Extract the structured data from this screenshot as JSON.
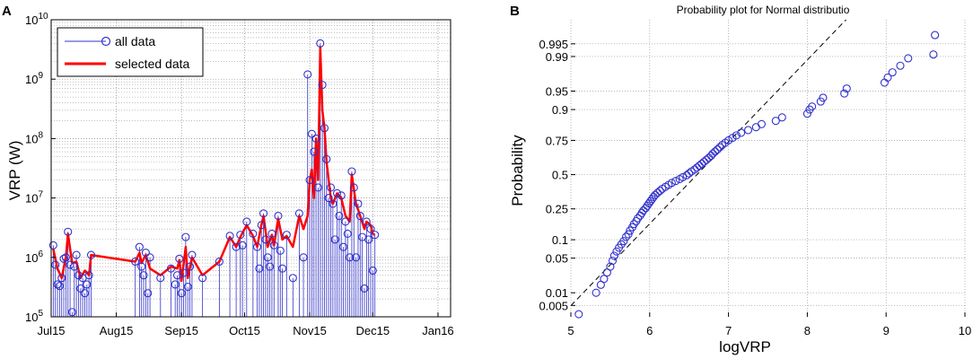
{
  "chart_data": [
    {
      "panel": "A",
      "type": "line",
      "ylabel": "VRP (W)",
      "xlabel": "",
      "yscale": "log",
      "ylim": [
        100000,
        10000000000
      ],
      "xlim_days": [
        0,
        190
      ],
      "y_ticks": [
        {
          "value": 100000,
          "base": "10",
          "exp": "5"
        },
        {
          "value": 1000000,
          "base": "10",
          "exp": "6"
        },
        {
          "value": 10000000,
          "base": "10",
          "exp": "7"
        },
        {
          "value": 100000000,
          "base": "10",
          "exp": "8"
        },
        {
          "value": 1000000000,
          "base": "10",
          "exp": "9"
        },
        {
          "value": 10000000000,
          "base": "10",
          "exp": "10"
        }
      ],
      "x_ticks": [
        {
          "label": "Jul15",
          "day": 0
        },
        {
          "label": "Aug15",
          "day": 31
        },
        {
          "label": "Sep15",
          "day": 62
        },
        {
          "label": "Oct15",
          "day": 92
        },
        {
          "label": "Nov15",
          "day": 123
        },
        {
          "label": "Dec15",
          "day": 153
        },
        {
          "label": "Jan16",
          "day": 184
        }
      ],
      "grid": true,
      "legend": {
        "position": "top-left",
        "entries": [
          "all data",
          "selected data"
        ]
      },
      "series": [
        {
          "name": "all data",
          "style": "stem-circle",
          "color": "#3333cc",
          "points": [
            [
              1,
              1600000.0
            ],
            [
              2,
              750000.0
            ],
            [
              3,
              350000.0
            ],
            [
              4,
              330000.0
            ],
            [
              5,
              450000.0
            ],
            [
              6,
              950000.0
            ],
            [
              7,
              1000000.0
            ],
            [
              8,
              2700000.0
            ],
            [
              9,
              750000.0
            ],
            [
              10,
              120000.0
            ],
            [
              11,
              700000.0
            ],
            [
              12,
              1100000.0
            ],
            [
              13,
              500000.0
            ],
            [
              14,
              300000.0
            ],
            [
              15,
              450000.0
            ],
            [
              16,
              250000.0
            ],
            [
              17,
              350000.0
            ],
            [
              18,
              500000.0
            ],
            [
              19,
              1100000.0
            ],
            [
              40,
              850000.0
            ],
            [
              42,
              1500000.0
            ],
            [
              43,
              700000.0
            ],
            [
              44,
              500000.0
            ],
            [
              45,
              1200000.0
            ],
            [
              46,
              250000.0
            ],
            [
              47,
              1000000.0
            ],
            [
              52,
              450000.0
            ],
            [
              57,
              650000.0
            ],
            [
              59,
              350000.0
            ],
            [
              60,
              500000.0
            ],
            [
              61,
              950000.0
            ],
            [
              62,
              250000.0
            ],
            [
              63,
              550000.0
            ],
            [
              64,
              2200000.0
            ],
            [
              65,
              320000.0
            ],
            [
              66,
              700000.0
            ],
            [
              67,
              1100000.0
            ],
            [
              72,
              450000.0
            ],
            [
              80,
              850000.0
            ],
            [
              85,
              2300000.0
            ],
            [
              88,
              1500000.0
            ],
            [
              90,
              2400000.0
            ],
            [
              91,
              1600000.0
            ],
            [
              93,
              4000000.0
            ],
            [
              96,
              2500000.0
            ],
            [
              98,
              1500000.0
            ],
            [
              99,
              650000.0
            ],
            [
              100,
              3500000.0
            ],
            [
              101,
              5500000.0
            ],
            [
              102,
              2000000.0
            ],
            [
              103,
              1000000.0
            ],
            [
              104,
              700000.0
            ],
            [
              105,
              2500000.0
            ],
            [
              106,
              1600000.0
            ],
            [
              108,
              5000000.0
            ],
            [
              109,
              1300000.0
            ],
            [
              110,
              650000.0
            ],
            [
              112,
              2400000.0
            ],
            [
              115,
              450000.0
            ],
            [
              118,
              5500000.0
            ],
            [
              120,
              1000000.0
            ],
            [
              122,
              1200000000.0
            ],
            [
              123,
              20000000.0
            ],
            [
              124,
              120000000.0
            ],
            [
              125,
              60000000.0
            ],
            [
              126,
              100000000.0
            ],
            [
              127,
              15000000.0
            ],
            [
              128,
              4000000000.0
            ],
            [
              129,
              800000000.0
            ],
            [
              130,
              150000000.0
            ],
            [
              131,
              45000000.0
            ],
            [
              132,
              10000000.0
            ],
            [
              133,
              15000000.0
            ],
            [
              134,
              8000000.0
            ],
            [
              135,
              2000000.0
            ],
            [
              136,
              12000000.0
            ],
            [
              137,
              5000000.0
            ],
            [
              138,
              11000000.0
            ],
            [
              139,
              1500000.0
            ],
            [
              140,
              4000000.0
            ],
            [
              141,
              2500000.0
            ],
            [
              142,
              1000000.0
            ],
            [
              143,
              28000000.0
            ],
            [
              144,
              15000000.0
            ],
            [
              145,
              1000000.0
            ],
            [
              146,
              8000000.0
            ],
            [
              147,
              5000000.0
            ],
            [
              148,
              2200000.0
            ],
            [
              149,
              300000.0
            ],
            [
              150,
              4000000.0
            ],
            [
              151,
              2000000.0
            ],
            [
              152,
              3000000.0
            ],
            [
              153,
              600000.0
            ],
            [
              154,
              2400000.0
            ]
          ]
        },
        {
          "name": "selected data",
          "style": "line",
          "color": "#ff0000",
          "points": [
            [
              1,
              1400000.0
            ],
            [
              3,
              650000.0
            ],
            [
              5,
              450000.0
            ],
            [
              7,
              1000000.0
            ],
            [
              8,
              2500000.0
            ],
            [
              10,
              800000.0
            ],
            [
              12,
              850000.0
            ],
            [
              14,
              450000.0
            ],
            [
              16,
              600000.0
            ],
            [
              18,
              500000.0
            ],
            [
              19,
              1100000.0
            ],
            [
              40,
              850000.0
            ],
            [
              42,
              1200000.0
            ],
            [
              43,
              800000.0
            ],
            [
              45,
              1100000.0
            ],
            [
              47,
              650000.0
            ],
            [
              52,
              500000.0
            ],
            [
              57,
              700000.0
            ],
            [
              60,
              650000.0
            ],
            [
              61,
              900000.0
            ],
            [
              62,
              400000.0
            ],
            [
              64,
              1500000.0
            ],
            [
              65,
              450000.0
            ],
            [
              67,
              1000000.0
            ],
            [
              72,
              500000.0
            ],
            [
              80,
              850000.0
            ],
            [
              85,
              2200000.0
            ],
            [
              88,
              1500000.0
            ],
            [
              90,
              2200000.0
            ],
            [
              93,
              3500000.0
            ],
            [
              96,
              2300000.0
            ],
            [
              98,
              1500000.0
            ],
            [
              100,
              3500000.0
            ],
            [
              101,
              5000000.0
            ],
            [
              103,
              1500000.0
            ],
            [
              105,
              2400000.0
            ],
            [
              106,
              1600000.0
            ],
            [
              108,
              4500000.0
            ],
            [
              110,
              2000000.0
            ],
            [
              112,
              2300000.0
            ],
            [
              115,
              1500000.0
            ],
            [
              118,
              5000000.0
            ],
            [
              120,
              3000000.0
            ],
            [
              122,
              5000000.0
            ],
            [
              123,
              20000000.0
            ],
            [
              124,
              30000000.0
            ],
            [
              125,
              10000000.0
            ],
            [
              126,
              100000000.0
            ],
            [
              127,
              20000000.0
            ],
            [
              128,
              3500000000.0
            ],
            [
              129,
              300000000.0
            ],
            [
              130,
              150000000.0
            ],
            [
              131,
              40000000.0
            ],
            [
              132,
              20000000.0
            ],
            [
              133,
              10000000.0
            ],
            [
              134,
              8000000.0
            ],
            [
              136,
              12000000.0
            ],
            [
              138,
              10000000.0
            ],
            [
              140,
              5000000.0
            ],
            [
              142,
              4000000.0
            ],
            [
              143,
              25000000.0
            ],
            [
              145,
              8000000.0
            ],
            [
              147,
              5000000.0
            ],
            [
              149,
              3000000.0
            ],
            [
              150,
              4000000.0
            ],
            [
              152,
              3500000.0
            ],
            [
              153,
              2500000.0
            ],
            [
              154,
              2400000.0
            ]
          ]
        }
      ]
    },
    {
      "panel": "B",
      "type": "scatter",
      "title": "Probability plot for Normal distributio",
      "xlabel": "logVRP",
      "ylabel": "Probability",
      "xlim": [
        5,
        10
      ],
      "x_ticks": [
        "5",
        "6",
        "7",
        "8",
        "9",
        "10"
      ],
      "y_ticks": [
        "0.005",
        "0.01",
        "0.05",
        "0.1",
        "0.25",
        "0.5",
        "0.75",
        "0.9",
        "0.95",
        "0.99",
        "0.995"
      ],
      "yscale": "normal-probability",
      "grid": "dotted",
      "fit_line": {
        "style": "dashed",
        "color": "#000000",
        "mean": 6.6,
        "sd": 0.62
      },
      "series": [
        {
          "name": "",
          "marker": "circle",
          "color": "#3333cc",
          "points": [
            [
              5.1,
              0.003
            ],
            [
              5.32,
              0.01
            ],
            [
              5.38,
              0.015
            ],
            [
              5.42,
              0.02
            ],
            [
              5.46,
              0.027
            ],
            [
              5.5,
              0.035
            ],
            [
              5.53,
              0.045
            ],
            [
              5.55,
              0.055
            ],
            [
              5.58,
              0.065
            ],
            [
              5.61,
              0.075
            ],
            [
              5.64,
              0.085
            ],
            [
              5.67,
              0.095
            ],
            [
              5.7,
              0.11
            ],
            [
              5.73,
              0.12
            ],
            [
              5.75,
              0.135
            ],
            [
              5.78,
              0.15
            ],
            [
              5.8,
              0.165
            ],
            [
              5.83,
              0.18
            ],
            [
              5.85,
              0.195
            ],
            [
              5.88,
              0.21
            ],
            [
              5.9,
              0.225
            ],
            [
              5.92,
              0.24
            ],
            [
              5.95,
              0.255
            ],
            [
              5.97,
              0.27
            ],
            [
              5.99,
              0.285
            ],
            [
              6.01,
              0.3
            ],
            [
              6.03,
              0.315
            ],
            [
              6.05,
              0.33
            ],
            [
              6.07,
              0.345
            ],
            [
              6.1,
              0.36
            ],
            [
              6.13,
              0.375
            ],
            [
              6.16,
              0.39
            ],
            [
              6.2,
              0.405
            ],
            [
              6.24,
              0.42
            ],
            [
              6.28,
              0.435
            ],
            [
              6.33,
              0.45
            ],
            [
              6.38,
              0.465
            ],
            [
              6.42,
              0.48
            ],
            [
              6.47,
              0.495
            ],
            [
              6.5,
              0.51
            ],
            [
              6.53,
              0.525
            ],
            [
              6.57,
              0.54
            ],
            [
              6.6,
              0.555
            ],
            [
              6.63,
              0.57
            ],
            [
              6.66,
              0.585
            ],
            [
              6.69,
              0.6
            ],
            [
              6.72,
              0.615
            ],
            [
              6.75,
              0.63
            ],
            [
              6.78,
              0.645
            ],
            [
              6.8,
              0.66
            ],
            [
              6.83,
              0.675
            ],
            [
              6.86,
              0.69
            ],
            [
              6.89,
              0.705
            ],
            [
              6.92,
              0.72
            ],
            [
              6.96,
              0.735
            ],
            [
              7.0,
              0.75
            ],
            [
              7.05,
              0.765
            ],
            [
              7.1,
              0.78
            ],
            [
              7.16,
              0.795
            ],
            [
              7.25,
              0.81
            ],
            [
              7.35,
              0.825
            ],
            [
              7.42,
              0.84
            ],
            [
              7.6,
              0.855
            ],
            [
              7.68,
              0.87
            ],
            [
              8.0,
              0.885
            ],
            [
              8.03,
              0.9
            ],
            [
              8.06,
              0.91
            ],
            [
              8.17,
              0.925
            ],
            [
              8.2,
              0.935
            ],
            [
              8.47,
              0.945
            ],
            [
              8.5,
              0.955
            ],
            [
              8.98,
              0.965
            ],
            [
              9.02,
              0.972
            ],
            [
              9.08,
              0.978
            ],
            [
              9.18,
              0.984
            ],
            [
              9.28,
              0.989
            ],
            [
              9.6,
              0.991
            ],
            [
              9.62,
              0.997
            ]
          ]
        }
      ]
    }
  ]
}
